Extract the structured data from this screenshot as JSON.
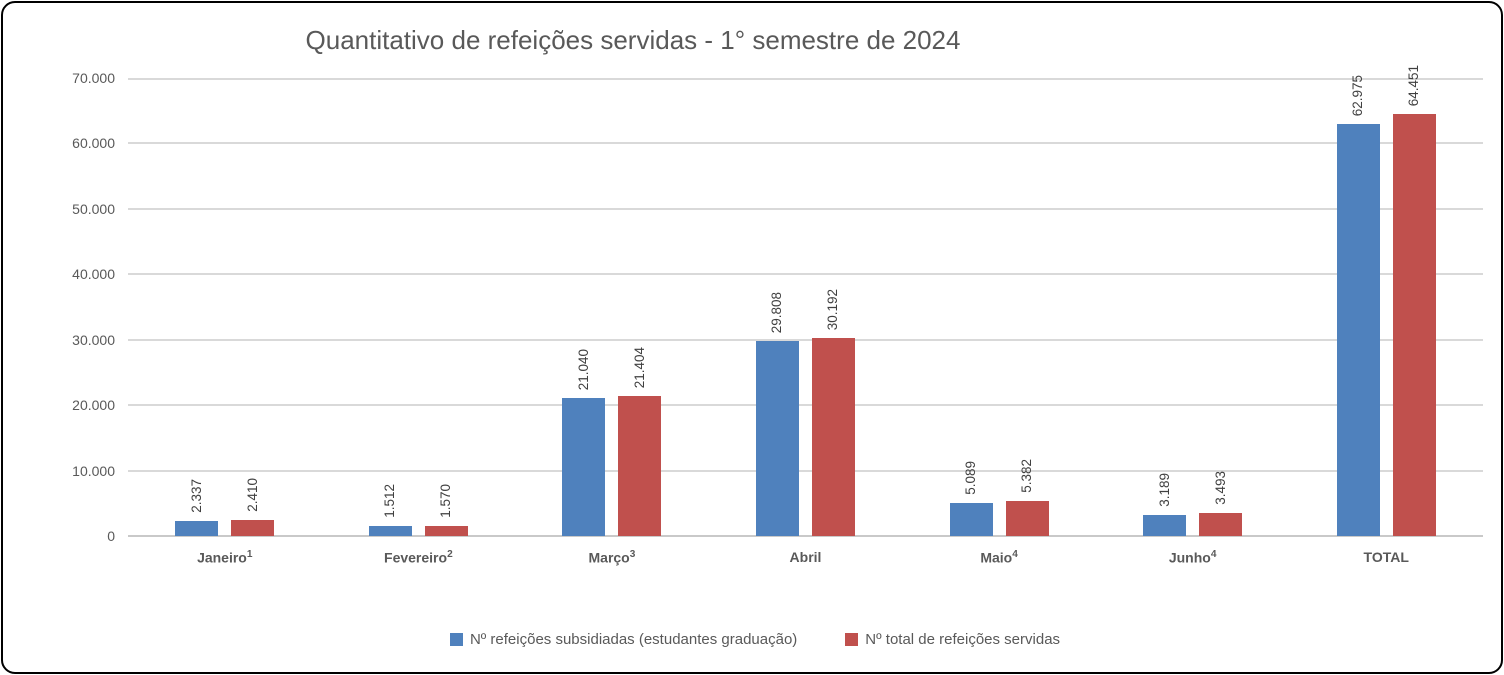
{
  "chart_data": {
    "type": "bar",
    "title": "Quantitativo de refeições servidas - 1° semestre de 2024",
    "categories": [
      {
        "label": "Janeiro",
        "sup": "1"
      },
      {
        "label": "Fevereiro",
        "sup": "2"
      },
      {
        "label": "Março",
        "sup": "3"
      },
      {
        "label": "Abril",
        "sup": ""
      },
      {
        "label": "Maio",
        "sup": "4"
      },
      {
        "label": "Junho",
        "sup": "4"
      },
      {
        "label": "TOTAL",
        "sup": ""
      }
    ],
    "series": [
      {
        "name": "Nº refeições subsidiadas (estudantes graduação)",
        "color": "#4F81BD",
        "values": [
          2337,
          1512,
          21040,
          29808,
          5089,
          3189,
          62975
        ],
        "value_labels": [
          "2.337",
          "1.512",
          "21.040",
          "29.808",
          "5.089",
          "3.189",
          "62.975"
        ]
      },
      {
        "name": "Nº total de refeições servidas",
        "color": "#C0504D",
        "values": [
          2410,
          1570,
          21404,
          30192,
          5382,
          3493,
          64451
        ],
        "value_labels": [
          "2.410",
          "1.570",
          "21.404",
          "30.192",
          "5.382",
          "3.493",
          "64.451"
        ]
      }
    ],
    "y_axis": {
      "min": 0,
      "max": 70000,
      "step": 10000,
      "tick_labels": [
        "0",
        "10.000",
        "20.000",
        "30.000",
        "40.000",
        "50.000",
        "60.000",
        "70.000"
      ]
    },
    "grid": true,
    "legend_position": "bottom",
    "theme": {
      "gridline_color": "#D9D9D9",
      "axis_line_color": "#C9C9C9",
      "title_color": "#595959",
      "tick_label_color": "#595959",
      "data_label_color": "#404040",
      "frame_border_color": "#000000",
      "background_color": "#FFFFFF"
    }
  }
}
